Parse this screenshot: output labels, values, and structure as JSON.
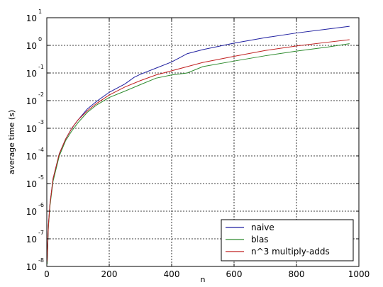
{
  "chart_data": {
    "type": "line",
    "title": "",
    "xlabel": "n",
    "ylabel": "average time (s)",
    "xlim": [
      0,
      1000
    ],
    "ylim": [
      1e-08,
      10
    ],
    "yscale": "log",
    "grid": true,
    "legend_position": "bottom-right",
    "x_ticks": [
      0,
      200,
      400,
      600,
      800,
      1000
    ],
    "y_ticks": [
      {
        "base": "10",
        "exp": "-8"
      },
      {
        "base": "10",
        "exp": "-7"
      },
      {
        "base": "10",
        "exp": "-6"
      },
      {
        "base": "10",
        "exp": "-5"
      },
      {
        "base": "10",
        "exp": "-4"
      },
      {
        "base": "10",
        "exp": "-3"
      },
      {
        "base": "10",
        "exp": "-2"
      },
      {
        "base": "10",
        "exp": "-1"
      },
      {
        "base": "10",
        "exp": "0"
      },
      {
        "base": "10",
        "exp": "1"
      }
    ],
    "series": [
      {
        "name": "naive",
        "color": "#1f1fa0",
        "x": [
          1,
          5,
          10,
          20,
          40,
          60,
          80,
          100,
          130,
          160,
          200,
          250,
          280,
          300,
          350,
          400,
          450,
          500,
          600,
          700,
          800,
          900,
          970
        ],
        "y": [
          1.5e-08,
          3e-07,
          1.8e-06,
          1.5e-05,
          0.00012,
          0.0004,
          0.001,
          0.002,
          0.005,
          0.0095,
          0.02,
          0.04,
          0.07,
          0.09,
          0.15,
          0.25,
          0.5,
          0.7,
          1.2,
          1.9,
          2.8,
          3.9,
          4.9
        ]
      },
      {
        "name": "blas",
        "color": "#2e8b2e",
        "x": [
          1,
          5,
          10,
          20,
          40,
          60,
          80,
          100,
          130,
          160,
          200,
          250,
          300,
          350,
          400,
          450,
          500,
          600,
          700,
          800,
          900,
          970
        ],
        "y": [
          1.2e-08,
          2.5e-07,
          1.5e-06,
          1.2e-05,
          0.0001,
          0.00035,
          0.0008,
          0.0016,
          0.0038,
          0.007,
          0.013,
          0.022,
          0.038,
          0.065,
          0.085,
          0.1,
          0.17,
          0.27,
          0.42,
          0.62,
          0.87,
          1.15
        ]
      },
      {
        "name": "n^3 multiply-adds",
        "color": "#c02020",
        "x": [
          1,
          5,
          10,
          20,
          40,
          60,
          80,
          100,
          130,
          160,
          200,
          250,
          300,
          350,
          400,
          450,
          500,
          600,
          700,
          800,
          900,
          970
        ],
        "y": [
          1.5e-08,
          3e-07,
          1.8e-06,
          1.5e-05,
          0.00012,
          0.0004,
          0.001,
          0.002,
          0.0043,
          0.008,
          0.016,
          0.031,
          0.053,
          0.085,
          0.12,
          0.17,
          0.24,
          0.4,
          0.65,
          0.95,
          1.3,
          1.6
        ]
      }
    ]
  }
}
